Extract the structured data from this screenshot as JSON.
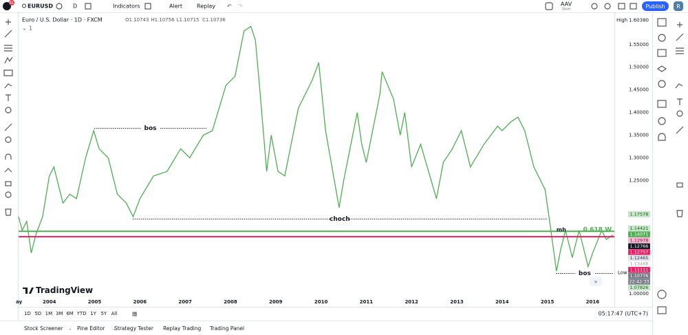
{
  "toolbar": {
    "symbol": "EURUSD",
    "notifications": "61",
    "interval": "D",
    "indicators": "Indicators",
    "alert": "Alert",
    "replay": "Replay",
    "layout_name": "AAV",
    "save": "Save",
    "publish": "Publish",
    "avatar": "R"
  },
  "legend": {
    "title": "Euro / U.S. Dollar · 1D · FXCM",
    "ohlc": [
      "O1.10743",
      "H1.10756",
      "L1.10715",
      "C1.10736"
    ],
    "count": "1"
  },
  "chart": {
    "type": "line",
    "color": "#4caf50",
    "x": [
      2003.32,
      2003.4,
      2003.5,
      2003.6,
      2003.7,
      2003.85,
      2004.0,
      2004.1,
      2004.3,
      2004.45,
      2004.6,
      2004.8,
      2004.98,
      2005.1,
      2005.3,
      2005.5,
      2005.7,
      2005.85,
      2006.0,
      2006.3,
      2006.6,
      2006.9,
      2007.1,
      2007.4,
      2007.6,
      2007.9,
      2008.1,
      2008.3,
      2008.45,
      2008.55,
      2008.65,
      2008.8,
      2008.9,
      2009.05,
      2009.2,
      2009.5,
      2009.8,
      2009.95,
      2010.1,
      2010.4,
      2010.5,
      2010.8,
      2010.9,
      2011.0,
      2011.3,
      2011.35,
      2011.6,
      2011.75,
      2011.85,
      2012.0,
      2012.2,
      2012.55,
      2012.7,
      2012.9,
      2013.1,
      2013.3,
      2013.6,
      2013.9,
      2014.0,
      2014.2,
      2014.35,
      2014.5,
      2014.7,
      2014.95,
      2015.05,
      2015.2,
      2015.3,
      2015.4,
      2015.55,
      2015.7,
      2015.9,
      2016.0,
      2016.2,
      2016.3,
      2016.45
    ],
    "values": [
      1.17,
      1.14,
      1.16,
      1.09,
      1.13,
      1.17,
      1.26,
      1.28,
      1.2,
      1.22,
      1.21,
      1.3,
      1.36,
      1.32,
      1.3,
      1.22,
      1.2,
      1.17,
      1.21,
      1.26,
      1.27,
      1.32,
      1.3,
      1.35,
      1.36,
      1.46,
      1.48,
      1.58,
      1.59,
      1.56,
      1.45,
      1.27,
      1.35,
      1.27,
      1.26,
      1.41,
      1.47,
      1.51,
      1.36,
      1.19,
      1.25,
      1.4,
      1.33,
      1.29,
      1.44,
      1.49,
      1.43,
      1.35,
      1.4,
      1.28,
      1.33,
      1.21,
      1.29,
      1.32,
      1.36,
      1.28,
      1.33,
      1.37,
      1.36,
      1.38,
      1.39,
      1.36,
      1.28,
      1.23,
      1.16,
      1.05,
      1.1,
      1.14,
      1.08,
      1.14,
      1.06,
      1.09,
      1.14,
      1.12,
      1.13
    ],
    "xlim": [
      2003.32,
      2016.48
    ],
    "ylim": [
      0.988,
      1.618
    ],
    "xticks": [
      {
        "value": 2003.33,
        "label": "ay"
      },
      2004,
      2005,
      2006,
      2007,
      2008,
      2009,
      2010,
      2011,
      2012,
      2013,
      2014,
      2015,
      2016
    ],
    "yticks": [
      {
        "value": 1.55,
        "label": "1.55000"
      },
      {
        "value": 1.5,
        "label": "1.50000"
      },
      {
        "value": 1.45,
        "label": "1.45000"
      },
      {
        "value": 1.4,
        "label": "1.40000"
      },
      {
        "value": 1.35,
        "label": "1.35000"
      },
      {
        "value": 1.3,
        "label": "1.30000"
      },
      {
        "value": 1.25,
        "label": "1.25000"
      },
      {
        "value": 1,
        "label": "1.00000"
      }
    ],
    "high": {
      "name": "High",
      "value": 1.6038,
      "label": "1.60380"
    },
    "low": {
      "name": "Low",
      "value": 1.04624
    },
    "levels": [
      {
        "value": 1.138,
        "color": "#4caf50",
        "label": "0.618 W"
      },
      {
        "value": 1.126,
        "color": "#e91e63"
      }
    ],
    "annotations": [
      {
        "text": "bos",
        "value": 1.365,
        "x": [
          2004.99,
          2007.47
        ]
      },
      {
        "text": "choch",
        "value": 1.165,
        "x": [
          2005.84,
          2014.99
        ]
      },
      {
        "text": "bos",
        "value": 1.045,
        "x": [
          2015.19,
          2016.46
        ]
      }
    ],
    "marks": [
      {
        "text": "mh",
        "x": 2015.2,
        "value": 1.138
      }
    ],
    "price_tags": [
      {
        "value": 1.17578,
        "bg": "#c8e6c9",
        "fg": "#1b5e20"
      },
      {
        "value": 1.14421,
        "bg": "#c8e6c9",
        "fg": "#1b5e20"
      },
      {
        "value": 1.14071,
        "bg": "#4caf50",
        "fg": "#ffffff"
      },
      {
        "value": 1.12978,
        "bg": "#f8bbd0",
        "fg": "#880e4f"
      },
      {
        "value": 1.12766,
        "bg": "#131722",
        "fg": "#ffffff"
      },
      {
        "value": 1.12757,
        "bg": "#e91e63",
        "fg": "#ffffff"
      },
      {
        "value": 1.12465,
        "bg": "#e1e4f0",
        "fg": "#333333"
      },
      {
        "value": 1.13468,
        "bg": "#ffffff",
        "fg": "#999999"
      },
      {
        "value": 1.11111,
        "bg": "#e91e63",
        "fg": "#ffffff"
      },
      {
        "value": 1.10776,
        "bg": "#787b86",
        "fg": "#ffffff"
      }
    ],
    "countdown": "22:42:33",
    "last_tag": {
      "value": 1.07826,
      "bg": "#c8e6c9",
      "fg": "#1b5e20"
    }
  },
  "logo": "TradingView",
  "range_buttons": [
    "1D",
    "5D",
    "1M",
    "3M",
    "6M",
    "YTD",
    "1Y",
    "5Y",
    "All"
  ],
  "clock": "05:17:47 (UTC+7)",
  "tabs": [
    "Stock Screener",
    "Pine Editor",
    "Strategy Tester",
    "Replay Trading",
    "Trading Panel"
  ]
}
